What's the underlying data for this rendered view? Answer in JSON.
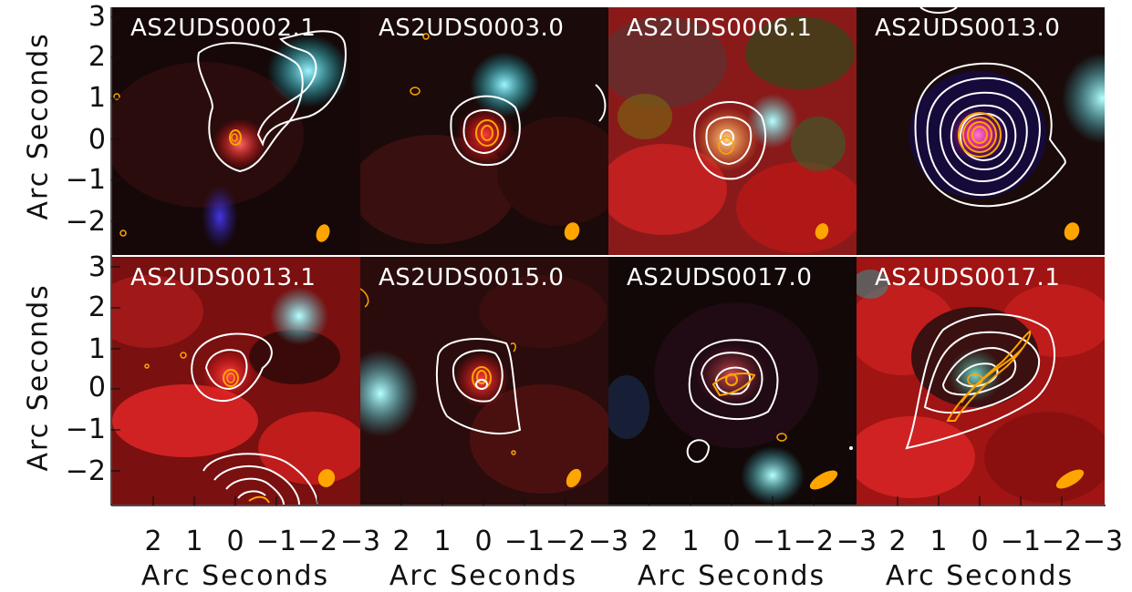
{
  "figure": {
    "y_axis_label": "Arc Seconds",
    "x_axis_label": "Arc Seconds",
    "y_ticks": [
      "3",
      "2",
      "1",
      "0",
      "−1",
      "−2"
    ],
    "x_ticks": [
      "2",
      "1",
      "0",
      "−1",
      "−2",
      "−3"
    ],
    "colors": {
      "contour_radio": "#ffffff",
      "contour_alma": "#ffa500",
      "beam": "#ffa500"
    }
  },
  "panels": [
    {
      "id": "AS2UDS0002.1",
      "title": "AS2UDS0002.1"
    },
    {
      "id": "AS2UDS0003.0",
      "title": "AS2UDS0003.0"
    },
    {
      "id": "AS2UDS0006.1",
      "title": "AS2UDS0006.1"
    },
    {
      "id": "AS2UDS0013.0",
      "title": "AS2UDS0013.0"
    },
    {
      "id": "AS2UDS0013.1",
      "title": "AS2UDS0013.1"
    },
    {
      "id": "AS2UDS0015.0",
      "title": "AS2UDS0015.0"
    },
    {
      "id": "AS2UDS0017.0",
      "title": "AS2UDS0017.0"
    },
    {
      "id": "AS2UDS0017.1",
      "title": "AS2UDS0017.1"
    }
  ]
}
